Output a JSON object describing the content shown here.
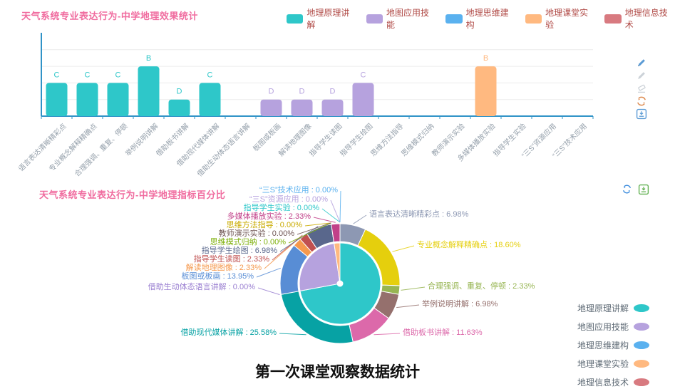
{
  "page": {
    "caption": "第一次课堂观察数据统计"
  },
  "colors": {
    "title_pink": "#f06c9f",
    "bar_legend_text": "#b04a46",
    "axis_blue": "#3093c7",
    "axis_label_gray": "#95a0ab",
    "grid_gray": "#ececec"
  },
  "bar_toolbar": {
    "icons": [
      "edit-pencil-icon",
      "pencil-disabled-icon",
      "eraser-disabled-icon",
      "refresh-icon",
      "save-image-icon"
    ]
  },
  "pie_toolbar": {
    "icons": [
      "refresh-icon",
      "save-image-icon"
    ]
  },
  "chart_data": [
    {
      "type": "bar",
      "title": "天气系统专业表达行为-中学地理效果统计",
      "legend": [
        "地理原理讲解",
        "地图应用技能",
        "地理思维建构",
        "地理课堂实验",
        "地理信息技术"
      ],
      "group_colors": [
        "#2ec7c9",
        "#b6a2de",
        "#5ab1ef",
        "#ffb980",
        "#d87a80"
      ],
      "group_ranges": [
        [
          0,
          7
        ],
        [
          7,
          11
        ],
        [
          11,
          13
        ],
        [
          13,
          16
        ],
        [
          16,
          18
        ]
      ],
      "categories": [
        "语言表达清晰精彩点",
        "专业概念解释精确点",
        "合理强调、重复、停顿",
        "举例说明讲解",
        "借助板书讲解",
        "借助现代媒体讲解",
        "借助生动体态语言讲解",
        "板图或板画",
        "解读地理图像",
        "指导学生读图",
        "指导学生绘图",
        "思维方法指导",
        "思维模式归纳",
        "教师演示实验",
        "多媒体播放实验",
        "指导学生实验",
        "“三S”资源应用",
        "“三S”技术应用"
      ],
      "values": [
        "C",
        "C",
        "C",
        "B",
        "D",
        "C",
        null,
        "D",
        "D",
        "D",
        "C",
        null,
        null,
        null,
        "B",
        null,
        null,
        null
      ],
      "grade_scale": {
        "A": 4,
        "B": 3,
        "C": 2,
        "D": 1
      },
      "ylim": [
        0,
        4
      ],
      "grid": "horizontal-light",
      "legend_position": "top"
    },
    {
      "type": "pie",
      "title": "天气系统专业表达行为-中学地理指标百分比",
      "items": [
        {
          "name": "语言表达清晰精彩点",
          "value": 6.98,
          "color": "#8d98b3"
        },
        {
          "name": "专业概念解释精确点",
          "value": 18.6,
          "color": "#e5cf0d"
        },
        {
          "name": "合理强调、重复、停顿",
          "value": 2.33,
          "color": "#97b552"
        },
        {
          "name": "举例说明讲解",
          "value": 6.98,
          "color": "#95706d"
        },
        {
          "name": "借助板书讲解",
          "value": 11.63,
          "color": "#dc69aa"
        },
        {
          "name": "借助现代媒体讲解",
          "value": 25.58,
          "color": "#07a2a4"
        },
        {
          "name": "借助生动体态语言讲解",
          "value": 0.0,
          "color": "#9a7fd1"
        },
        {
          "name": "板图或板画",
          "value": 13.95,
          "color": "#588dd5"
        },
        {
          "name": "解读地理图像",
          "value": 2.33,
          "color": "#f5994e"
        },
        {
          "name": "指导学生读图",
          "value": 2.33,
          "color": "#c05050"
        },
        {
          "name": "指导学生绘图",
          "value": 6.98,
          "color": "#59678c"
        },
        {
          "name": "思维方法指导",
          "value": 0.0,
          "color": "#c9ab00"
        },
        {
          "name": "思维模式归纳",
          "value": 0.0,
          "color": "#7eb00a"
        },
        {
          "name": "教师演示实验",
          "value": 0.0,
          "color": "#6f5553"
        },
        {
          "name": "多媒体播放实验",
          "value": 2.33,
          "color": "#c14089"
        },
        {
          "name": "指导学生实验",
          "value": 0.0,
          "color": "#2ec7c9"
        },
        {
          "name": "“三S”资源应用",
          "value": 0.0,
          "color": "#b6a2de"
        },
        {
          "name": "“三S”技术应用",
          "value": 0.0,
          "color": "#5ab1ef"
        }
      ],
      "inner_groups": [
        {
          "name": "地理原理讲解",
          "value": 72.1,
          "color": "#2ec7c9"
        },
        {
          "name": "地图应用技能",
          "value": 25.59,
          "color": "#b6a2de"
        },
        {
          "name": "地理思维建构",
          "value": 0.0,
          "color": "#5ab1ef"
        },
        {
          "name": "地理课堂实验",
          "value": 2.33,
          "color": "#ffb980"
        },
        {
          "name": "地理信息技术",
          "value": 0.0,
          "color": "#d87a80"
        }
      ],
      "legend": [
        {
          "name": "地理原理讲解",
          "color": "#2ec7c9"
        },
        {
          "name": "地图应用技能",
          "color": "#b6a2de"
        },
        {
          "name": "地理思维建构",
          "color": "#5ab1ef"
        },
        {
          "name": "地理课堂实验",
          "color": "#ffb980"
        },
        {
          "name": "地理信息技术",
          "color": "#d87a80"
        }
      ],
      "legend_position": "right-bottom"
    }
  ]
}
